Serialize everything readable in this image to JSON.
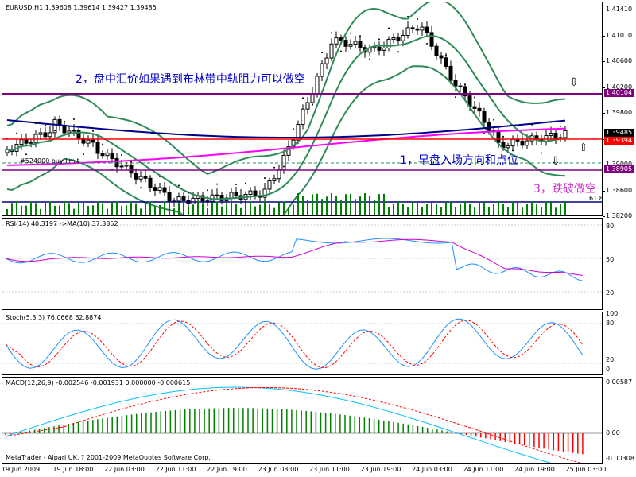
{
  "main": {
    "title": "EURUSD,H1  1.39608 1.39614 1.39427 1.39485",
    "scale_labels": [
      "1.41410",
      "1.41010",
      "1.40600",
      "1.40200",
      "1.39800",
      "1.39400",
      "1.39000",
      "1.38600",
      "1.38200"
    ],
    "price_boxes": [
      {
        "text": "1.40104",
        "color": "#800080"
      },
      {
        "text": "1.39485",
        "color": "#000000"
      },
      {
        "text": "1.39394",
        "color": "#ff0000"
      },
      {
        "text": "1.38905",
        "color": "#800080"
      }
    ],
    "annotations": [
      {
        "text": "2，盘中汇价如果遇到布林带中轨阻力可以做空",
        "color": "#0000cc"
      },
      {
        "text": "1，早盘入场方向和点位",
        "color": "#0000cc"
      },
      {
        "text": "3，跌破做空",
        "color": "#cc33cc"
      }
    ],
    "buy_limit_label": "#524000 buy limit",
    "fib_label": "61.8",
    "arrows": [
      "⇩",
      "⇧",
      "⇩"
    ]
  },
  "rsi": {
    "title": "RSI(14) 40.3197  ->MA(10) 37.3852",
    "scale_labels": [
      "80",
      "50",
      "20"
    ]
  },
  "stoch": {
    "title": "Stoch(5,3,3) 76.0668 62.8874",
    "scale_labels": [
      "100",
      "80",
      "20",
      "0"
    ]
  },
  "macd": {
    "title": "MACD(12,26,9) -0.002546 -0.001931 0.000000 -0.000615",
    "scale_labels": [
      "0.00587",
      "0.00",
      "-0.00308"
    ],
    "footer": "MetaTrader - Alpari UK, ? 2001-2009 MetaQuotes Software Corp."
  },
  "x_axis": [
    "19 Jun 2009",
    "19 Jun 18:00",
    "22 Jun 03:00",
    "22 Jun 11:00",
    "22 Jun 19:00",
    "23 Jun 03:00",
    "23 Jun 11:00",
    "23 Jun 19:00",
    "24 Jun 03:00",
    "24 Jun 11:00",
    "24 Jun 19:00",
    "25 Jun 03:00"
  ],
  "colors": {
    "candle_up": "#ffffff",
    "candle_down": "#000000",
    "bb": "#2e8b57",
    "ma_blue": "#00008b",
    "ma_magenta": "#ff00ff",
    "resistance": "#800080",
    "support": "#ff0000",
    "fib": "#000080",
    "volume": "#008000",
    "rsi": "#1e90ff",
    "rsi_ma": "#cc00cc",
    "stoch_main": "#1e90ff",
    "stoch_signal": "#ff0000",
    "macd_hist_pos": "#008000",
    "macd_hist_neg": "#ff0000",
    "macd_line": "#00bfff",
    "macd_signal": "#ff0000"
  }
}
